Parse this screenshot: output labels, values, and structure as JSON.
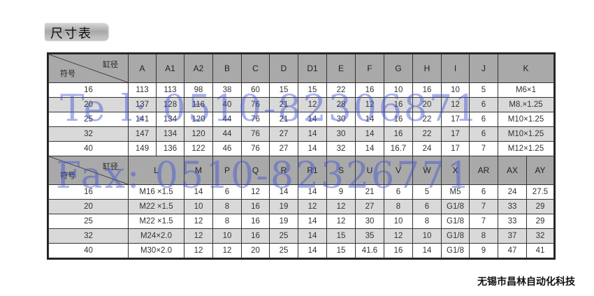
{
  "title": "尺寸表",
  "corner": {
    "bore": "缸径",
    "symbol": "符号"
  },
  "table1": {
    "headers": [
      "A",
      "A1",
      "A2",
      "B",
      "C",
      "D",
      "D1",
      "E",
      "F",
      "G",
      "H",
      "I",
      "J",
      "K"
    ],
    "rows": [
      [
        "16",
        "113",
        "113",
        "98",
        "38",
        "60",
        "15",
        "15",
        "22",
        "16",
        "10",
        "16",
        "10",
        "5",
        "M6×1"
      ],
      [
        "20",
        "137",
        "128",
        "116",
        "40",
        "76",
        "21",
        "12",
        "28",
        "12",
        "16",
        "20",
        "12",
        "6",
        "M8.×1.25"
      ],
      [
        "25",
        "141",
        "134",
        "120",
        "44",
        "76",
        "21",
        "14",
        "30",
        "14",
        "16",
        "22",
        "17",
        "6",
        "M10×1.25"
      ],
      [
        "32",
        "147",
        "134",
        "120",
        "44",
        "76",
        "27",
        "14",
        "30",
        "14",
        "16",
        "22",
        "17",
        "6",
        "M10×1.25"
      ],
      [
        "40",
        "149",
        "136",
        "122",
        "46",
        "76",
        "27",
        "14",
        "32",
        "14",
        "16.7",
        "24",
        "17",
        "7",
        "M12×1.25"
      ]
    ]
  },
  "table2": {
    "headers": [
      "L",
      "M",
      "P",
      "Q",
      "R",
      "R1",
      "S",
      "U",
      "V",
      "W",
      "X",
      "AR",
      "AX",
      "AY"
    ],
    "rows": [
      [
        "16",
        "M16 ×1.5",
        "14",
        "6",
        "12",
        "14",
        "14",
        "9",
        "21",
        "6",
        "5",
        "M5",
        "6",
        "24",
        "27.5"
      ],
      [
        "20",
        "M22 ×1.5",
        "10",
        "8",
        "16",
        "19",
        "12",
        "12",
        "27",
        "8",
        "6",
        "G1/8",
        "7",
        "33",
        "29"
      ],
      [
        "25",
        "M22 ×1.5",
        "12",
        "8",
        "16",
        "19",
        "14",
        "12",
        "30",
        "10",
        "8",
        "G1/8",
        "7",
        "33",
        "29"
      ],
      [
        "32",
        "M24×2.0",
        "12",
        "10",
        "16",
        "25",
        "14",
        "15",
        "35",
        "12",
        "10",
        "G1/8",
        "8",
        "37",
        "32"
      ],
      [
        "40",
        "M30×2.0",
        "12",
        "12",
        "20",
        "25",
        "14",
        "15",
        "41.6",
        "16",
        "14",
        "G1/8",
        "9",
        "47",
        "41"
      ]
    ]
  },
  "watermark": {
    "tel": "Te l: 0510-82306871",
    "fax": "Fax: 0510-82326771",
    "color": "#3c50d2"
  },
  "company": "无锡市昌林自动化科技"
}
